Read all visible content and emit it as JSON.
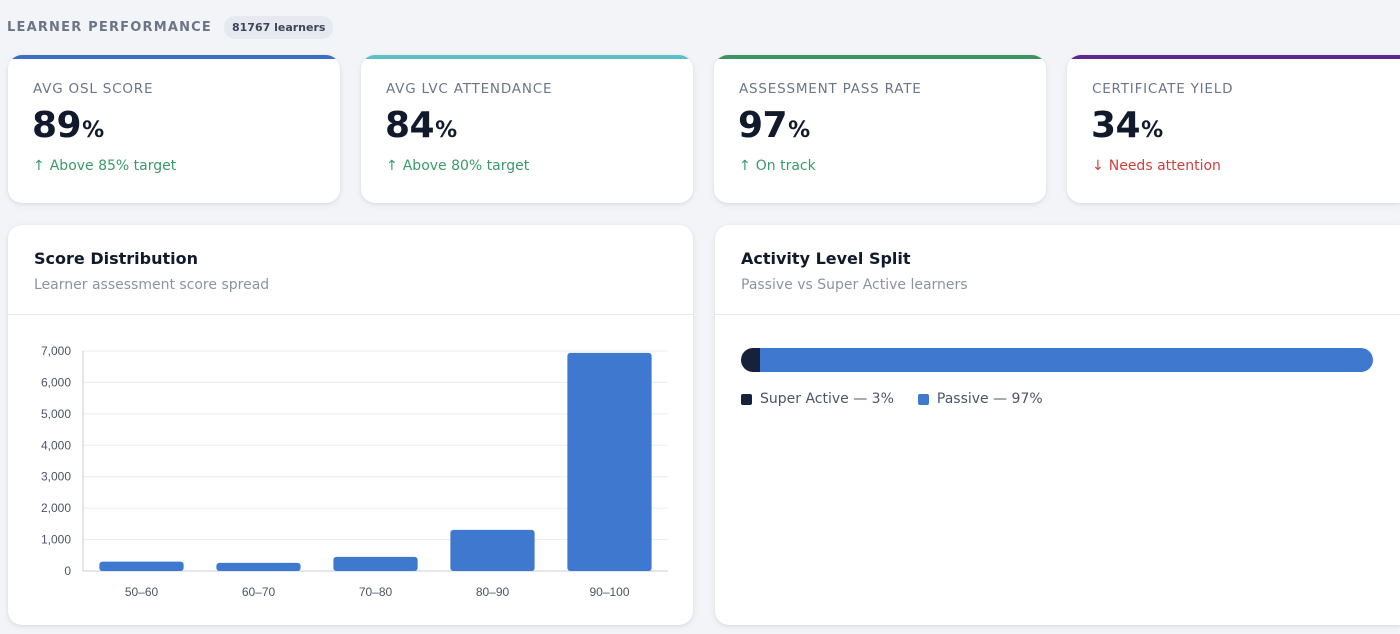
{
  "header": {
    "title": "LEARNER PERFORMANCE",
    "count": "81767 learners"
  },
  "kpis": [
    {
      "label": "AVG OSL SCORE",
      "value": "89",
      "unit": "%",
      "trend": "Above 85% target",
      "direction": "up",
      "accent": "#3b6fc4"
    },
    {
      "label": "AVG LVC ATTENDANCE",
      "value": "84",
      "unit": "%",
      "trend": "Above 80% target",
      "direction": "up",
      "accent": "#5bbfc9"
    },
    {
      "label": "ASSESSMENT PASS RATE",
      "value": "97",
      "unit": "%",
      "trend": "On track",
      "direction": "up",
      "accent": "#3e9460"
    },
    {
      "label": "CERTIFICATE YIELD",
      "value": "34",
      "unit": "%",
      "trend": "Needs attention",
      "direction": "down",
      "accent": "#5d2a8c"
    }
  ],
  "score_panel": {
    "title": "Score Distribution",
    "subtitle": "Learner assessment score spread"
  },
  "activity_panel": {
    "title": "Activity Level Split",
    "subtitle": "Passive vs Super Active learners",
    "segments": [
      {
        "label": "Super Active — 3%",
        "fraction": 0.03,
        "color": "#16223a"
      },
      {
        "label": "Passive — 97%",
        "fraction": 0.97,
        "color": "#3f78cf"
      }
    ]
  },
  "chart_data": {
    "type": "bar",
    "categories": [
      "50–60",
      "60–70",
      "70–80",
      "80–90",
      "90–100"
    ],
    "values": [
      300,
      260,
      450,
      1310,
      6940
    ],
    "ylim": [
      0,
      7000
    ],
    "yticks": [
      0,
      1000,
      2000,
      3000,
      4000,
      5000,
      6000,
      7000
    ],
    "ytick_labels": [
      "0",
      "1,000",
      "2,000",
      "3,000",
      "4,000",
      "5,000",
      "6,000",
      "7,000"
    ],
    "grid": true,
    "bar_color": "#3f78cf",
    "title": "",
    "xlabel": "",
    "ylabel": ""
  }
}
